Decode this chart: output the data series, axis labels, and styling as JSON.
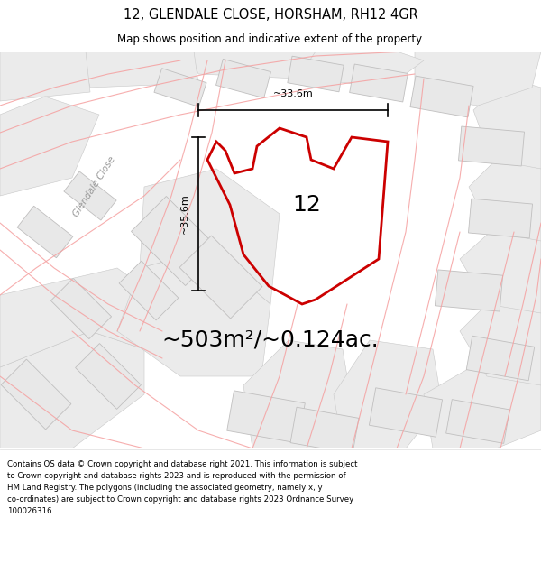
{
  "title": "12, GLENDALE CLOSE, HORSHAM, RH12 4GR",
  "subtitle": "Map shows position and indicative extent of the property.",
  "area_text": "~503m²/~0.124ac.",
  "label_number": "12",
  "dim_vertical": "~35.6m",
  "dim_horizontal": "~33.6m",
  "road_label": "Glendale Close",
  "footer_lines": [
    "Contains OS data © Crown copyright and database right 2021. This information is subject",
    "to Crown copyright and database rights 2023 and is reproduced with the permission of",
    "HM Land Registry. The polygons (including the associated geometry, namely x, y",
    "co-ordinates) are subject to Crown copyright and database rights 2023 Ordnance Survey",
    "100026316."
  ],
  "map_bg": "#ffffff",
  "building_fill": "#e8e8e8",
  "building_edge": "#c0bfbf",
  "road_color": "#f5a0a0",
  "plot_color": "#cc0000",
  "title_fontsize": 10.5,
  "subtitle_fontsize": 8.5,
  "area_fontsize": 18,
  "label_fontsize": 18,
  "footer_fontsize": 6.2,
  "dim_fontsize": 8
}
